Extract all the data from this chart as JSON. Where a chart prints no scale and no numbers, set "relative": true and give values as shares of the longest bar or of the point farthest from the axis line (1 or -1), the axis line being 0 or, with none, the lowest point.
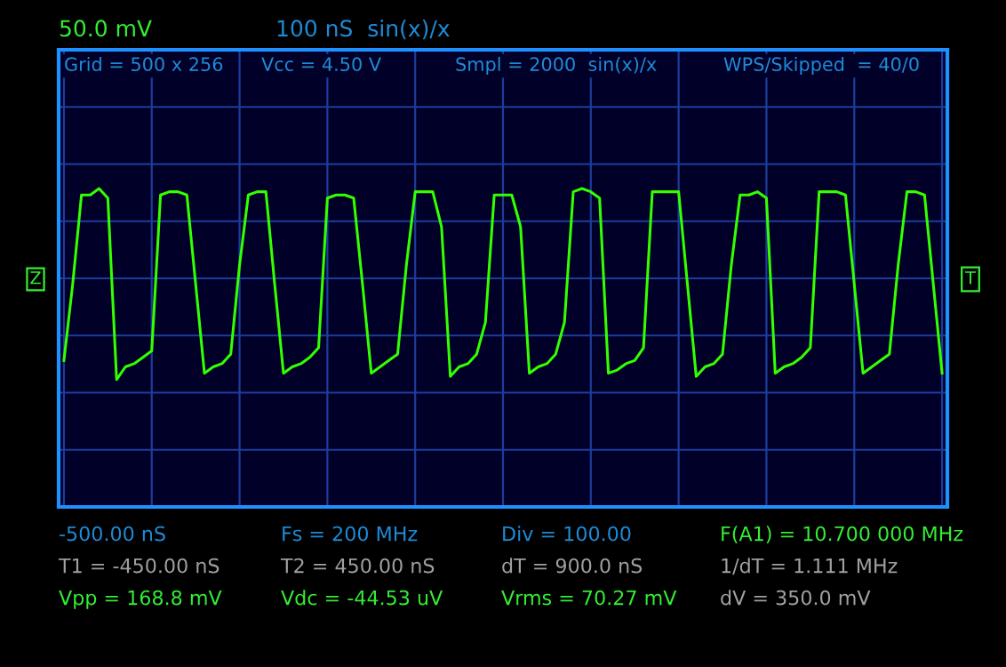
{
  "chart_data": {
    "type": "line",
    "title": "50.0 mV",
    "subtitle": "100 nS  sin(x)/x",
    "relative": true,
    "grid": true,
    "legend": false,
    "categories": [
      null,
      null,
      null,
      null,
      null,
      null,
      null,
      null,
      null,
      null,
      null,
      null,
      null,
      null,
      null,
      null,
      null,
      null,
      null,
      null,
      null,
      null,
      null,
      null,
      null,
      null,
      null,
      null,
      null,
      null,
      null,
      null,
      null,
      null,
      null,
      null,
      null,
      null,
      null,
      null,
      null,
      null,
      null,
      null,
      null,
      null,
      null,
      null,
      null,
      null,
      null,
      null,
      null,
      null,
      null,
      null,
      null,
      null,
      null,
      null,
      null,
      null,
      null,
      null,
      null,
      null,
      null,
      null,
      null,
      null,
      null,
      null,
      null,
      null,
      null,
      null,
      null,
      null,
      null,
      null,
      null,
      null,
      null,
      null,
      null,
      null,
      null,
      null,
      null,
      null,
      null,
      null,
      null,
      null,
      null,
      null,
      null,
      null,
      null,
      null,
      null
    ],
    "series": [
      {
        "color": "#33ff00",
        "values": [
          0.46,
          0.7,
          0.98,
          0.98,
          1.0,
          0.97,
          0.4,
          0.44,
          0.45,
          0.47,
          0.49,
          0.98,
          0.99,
          0.99,
          0.98,
          0.7,
          0.42,
          0.44,
          0.45,
          0.48,
          0.76,
          0.98,
          0.99,
          0.99,
          0.7,
          0.42,
          0.44,
          0.45,
          0.47,
          0.5,
          0.97,
          0.98,
          0.98,
          0.97,
          0.7,
          0.42,
          0.44,
          0.46,
          0.48,
          0.76,
          0.99,
          0.99,
          0.99,
          0.88,
          0.41,
          0.44,
          0.45,
          0.48,
          0.58,
          0.98,
          0.98,
          0.98,
          0.88,
          0.42,
          0.44,
          0.45,
          0.48,
          0.58,
          0.99,
          1.0,
          0.99,
          0.97,
          0.42,
          0.43,
          0.45,
          0.46,
          0.5,
          0.99,
          0.99,
          0.99,
          0.99,
          0.7,
          0.41,
          0.44,
          0.45,
          0.48,
          0.76,
          0.98,
          0.98,
          0.99,
          0.97,
          0.42,
          0.44,
          0.45,
          0.47,
          0.5,
          0.99,
          0.99,
          0.99,
          0.98,
          0.7,
          0.42,
          0.44,
          0.46,
          0.48,
          0.76,
          0.99,
          0.99,
          0.98,
          0.7,
          0.42
        ]
      }
    ],
    "annotations": [
      "Grid = 500 x 256",
      "Vcc = 4.50 V",
      "Smpl = 2000  sin(x)/x",
      "WPS/Skipped  = 40/0",
      "-500.00 nS",
      "Fs = 200 MHz",
      "Div = 100.00",
      "F(A1) = 10.700 000 MHz",
      "T1 = -450.00 nS",
      "T2 = 450.00 nS",
      "dT = 900.0 nS",
      "1/dT = 1.111 MHz",
      "Vpp = 168.8 mV",
      "Vdc = -44.53 uV",
      "Vrms = 70.27 mV",
      "dV = 350.0 mV",
      "Z",
      "T"
    ]
  }
}
